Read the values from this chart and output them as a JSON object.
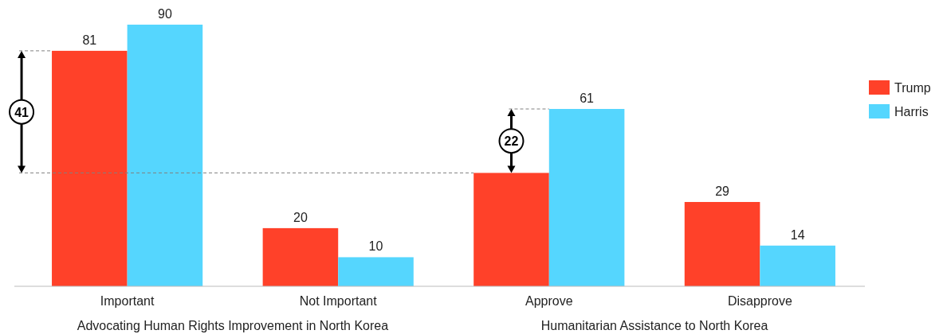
{
  "chart_data": {
    "type": "bar",
    "categories": [
      "Important",
      "Not Important",
      "Approve",
      "Disapprove"
    ],
    "series": [
      {
        "name": "Trump",
        "color": "#ff4129",
        "values": [
          81,
          20,
          39,
          29
        ],
        "value_labels": [
          "81",
          "20",
          null,
          "29"
        ]
      },
      {
        "name": "Harris",
        "color": "#55d6fe",
        "values": [
          90,
          10,
          61,
          14
        ],
        "value_labels": [
          "90",
          "10",
          "61",
          "14"
        ]
      }
    ],
    "legend": "right",
    "annotations": [
      "41",
      "22",
      "Advocating Human Rights Improvement in North Korea",
      "Humanitarian Assistance to North Korea"
    ]
  }
}
